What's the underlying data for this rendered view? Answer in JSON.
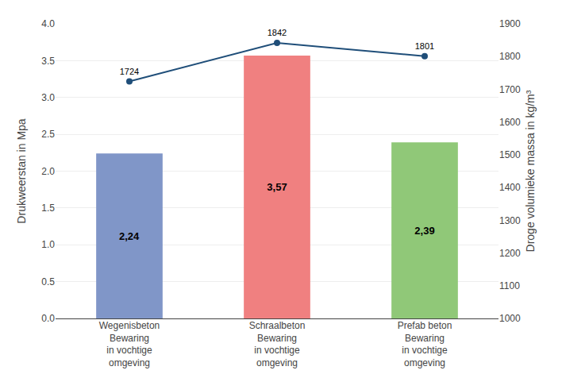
{
  "chart_data": {
    "type": "bar",
    "categories": [
      "Wegenisbeton\nBewaring\nin vochtige\nomgeving",
      "Schraalbeton\nBewaring\nin vochtige\nomgeving",
      "Prefab beton\nBewaring\nin vochtige\nomgeving"
    ],
    "ylabel": "Drukweerstan in Mpa",
    "y2label": "Droge volumieke massa in kg/m³",
    "ylim": [
      0,
      4
    ],
    "yticks": [
      {
        "value": 0,
        "label": "0.0"
      },
      0.5,
      {
        "value": 1,
        "label": "1.0"
      },
      1.5,
      {
        "value": 2,
        "label": "2.0"
      },
      2.5,
      {
        "value": 3,
        "label": "3.0"
      },
      3.5,
      {
        "value": 4,
        "label": "4.0"
      }
    ],
    "y2lim": [
      1000,
      1900
    ],
    "y2ticks": [
      1000,
      1100,
      1200,
      1300,
      1400,
      1500,
      1600,
      1700,
      1800,
      1900
    ],
    "grid": true,
    "data_labels": true,
    "series": [
      {
        "type": "bar",
        "colors": [
          "#8096C8",
          "#F08080",
          "#90C878"
        ],
        "values": [
          2.24,
          3.57,
          2.39
        ],
        "value_labels": [
          "2,24",
          "3,57",
          "2,39"
        ]
      },
      {
        "type": "line",
        "axis": "y2",
        "color": "#1F4E79",
        "marker": "circle",
        "values": [
          1724,
          1842,
          1801
        ]
      }
    ]
  }
}
